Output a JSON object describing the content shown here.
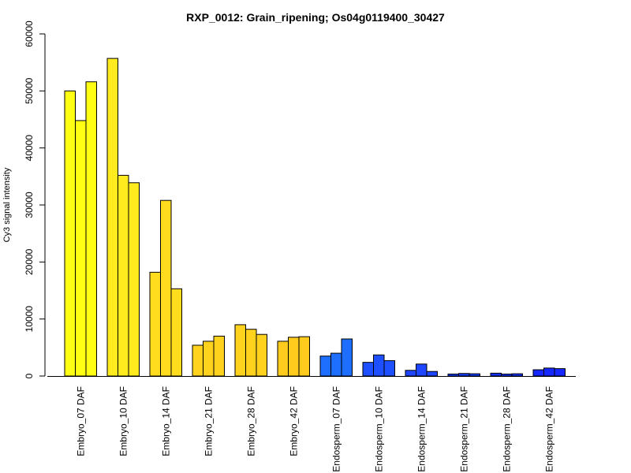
{
  "chart_data": {
    "type": "bar",
    "title": "RXP_0012: Grain_ripening; Os04g0119400_30427",
    "xlabel": "",
    "ylabel": "Cy3 signal intensity",
    "ylim": [
      0,
      60000
    ],
    "yticks": [
      0,
      10000,
      20000,
      30000,
      40000,
      50000,
      60000
    ],
    "grid": false,
    "legend": "none",
    "bars_per_group": 3,
    "categories": [
      "Embryo_07 DAF",
      "Embryo_10 DAF",
      "Embryo_14 DAF",
      "Embryo_21 DAF",
      "Embryo_28 DAF",
      "Embryo_42 DAF",
      "Endosperm_07 DAF",
      "Endosperm_10 DAF",
      "Endosperm_14 DAF",
      "Endosperm_21 DAF",
      "Endosperm_28 DAF",
      "Endosperm_42 DAF"
    ],
    "colors": [
      "#ffff14",
      "#ffeb1e",
      "#ffdc1e",
      "#ffd21e",
      "#ffd21e",
      "#ffcc1e",
      "#1e6eff",
      "#1e50ff",
      "#1e46ff",
      "#143cff",
      "#1432ff",
      "#1428ff"
    ],
    "values": [
      [
        50000,
        44800,
        51600
      ],
      [
        55700,
        35200,
        33900
      ],
      [
        18200,
        30800,
        15300
      ],
      [
        5400,
        6100,
        7000
      ],
      [
        9000,
        8200,
        7300
      ],
      [
        6100,
        6800,
        6900
      ],
      [
        3500,
        4000,
        6500
      ],
      [
        2400,
        3700,
        2700
      ],
      [
        1000,
        2100,
        800
      ],
      [
        350,
        450,
        400
      ],
      [
        500,
        350,
        400
      ],
      [
        1100,
        1400,
        1300
      ]
    ]
  }
}
